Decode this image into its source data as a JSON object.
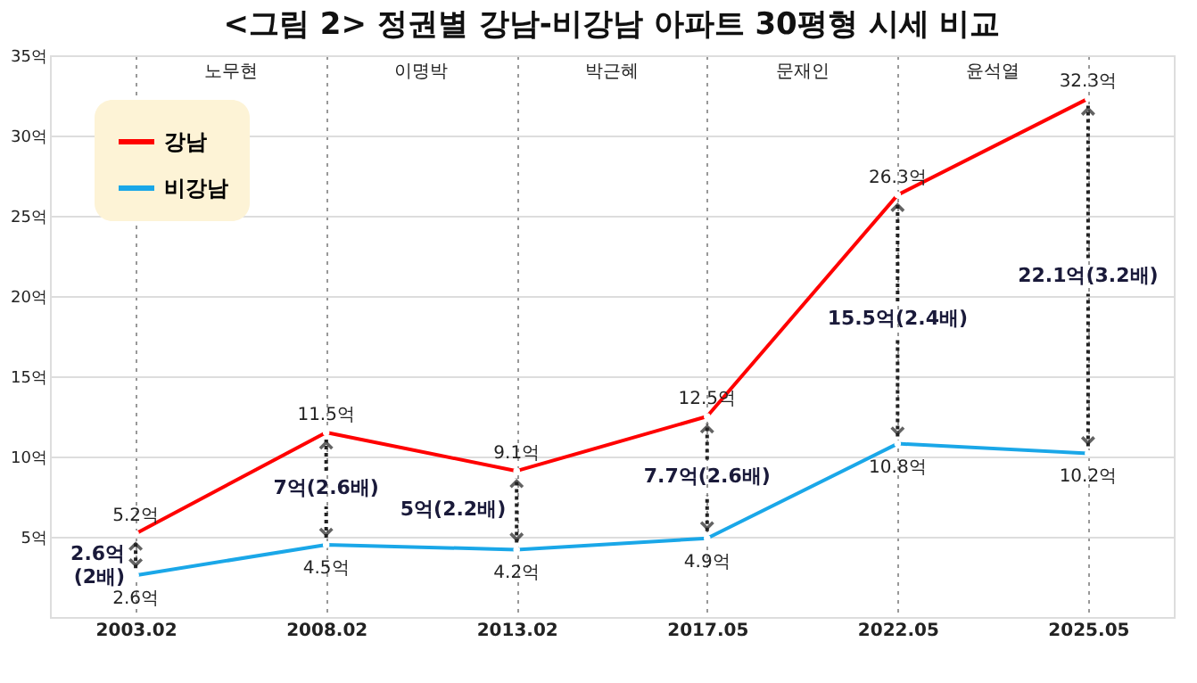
{
  "chart_data": {
    "type": "line",
    "title": "<그림 2> 정권별 강남-비강남 아파트 30평형 시세 비교",
    "categories": [
      "2003.02",
      "2008.02",
      "2013.02",
      "2017.05",
      "2022.05",
      "2025.05"
    ],
    "series": [
      {
        "name": "강남",
        "color": "#ff0000",
        "values": [
          5.2,
          11.5,
          9.1,
          12.5,
          26.3,
          32.3
        ],
        "value_labels": [
          "5.2억",
          "11.5억",
          "9.1억",
          "12.5억",
          "26.3억",
          "32.3억"
        ]
      },
      {
        "name": "비강남",
        "color": "#1aa7e8",
        "values": [
          2.6,
          4.5,
          4.2,
          4.9,
          10.8,
          10.2
        ],
        "value_labels": [
          "2.6억",
          "4.5억",
          "4.2억",
          "4.9억",
          "10.8억",
          "10.2억"
        ]
      }
    ],
    "ylim": [
      0,
      35
    ],
    "yticks": [
      {
        "value": 5,
        "label": "5억"
      },
      {
        "value": 10,
        "label": "10억"
      },
      {
        "value": 15,
        "label": "15억"
      },
      {
        "value": 20,
        "label": "20억"
      },
      {
        "value": 25,
        "label": "25억"
      },
      {
        "value": 30,
        "label": "30억"
      },
      {
        "value": 35,
        "label": "35억"
      }
    ],
    "grid": true,
    "legend": "top left",
    "marker": "circle",
    "line_style": "solid",
    "annotations": [
      {
        "text": "2.6억\n(2배)",
        "x": "2003.02",
        "y": 5.2
      },
      {
        "text": "7억(2.6배)",
        "x": "2008.02",
        "y": 11.5
      },
      {
        "text": "5억(2.2배)",
        "x": "2013.02",
        "y": 9.1
      },
      {
        "text": "7.7억(2.6배)",
        "x": "2017.05",
        "y": 12.5
      },
      {
        "text": "15.5억(2.4배)",
        "x": "2022.05",
        "y": 26.3
      },
      {
        "text": "22.1억(3.2배)",
        "x": "2025.05",
        "y": 32.3
      },
      "노무현",
      "이명박",
      "박근혜",
      "문재인",
      "윤석열"
    ]
  }
}
